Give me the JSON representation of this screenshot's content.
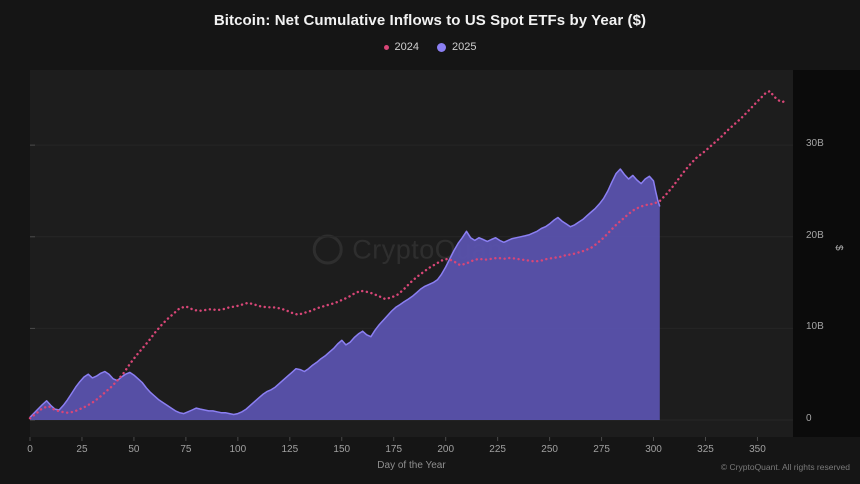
{
  "watermark": {
    "text": "CryptoQuant"
  },
  "footer": {
    "copyright": "© CryptoQuant. All rights reserved"
  },
  "colors": {
    "background": "#151515",
    "plot_background": "#1d1d1d",
    "axis_strip": "#0b0b0b",
    "grid": "#262626",
    "tick": "#4a4a4a",
    "series_2024": "#d84677",
    "series_2025_line": "#8b7ff2",
    "series_2025_fill": "#5a52ad"
  },
  "chart_data": {
    "type": "line",
    "title": "Bitcoin: Net Cumulative Inflows to US Spot ETFs by Year ($)",
    "xlabel": "Day of the Year",
    "ylabel": "$",
    "y_unit": "billions USD",
    "xlim": [
      0,
      367.1
    ],
    "ylim": [
      -1.85,
      38.2
    ],
    "grid": "horizontal-faint",
    "legend_position": "top-center",
    "y_axis_side": "right",
    "xticks": [
      0,
      25,
      50,
      75,
      100,
      125,
      150,
      175,
      200,
      225,
      250,
      275,
      300,
      325,
      350
    ],
    "yticks": [
      {
        "v": 0,
        "label": "0"
      },
      {
        "v": 10,
        "label": "10B"
      },
      {
        "v": 20,
        "label": "20B"
      },
      {
        "v": 30,
        "label": "30B"
      }
    ],
    "series": [
      {
        "name": "2024",
        "style": "dotted-line",
        "color": "#d84677",
        "points": [
          [
            0,
            0.2
          ],
          [
            3,
            0.7
          ],
          [
            6,
            1.3
          ],
          [
            9,
            1.5
          ],
          [
            12,
            1.1
          ],
          [
            15,
            0.9
          ],
          [
            18,
            0.8
          ],
          [
            21,
            0.9
          ],
          [
            24,
            1.2
          ],
          [
            27,
            1.5
          ],
          [
            30,
            1.9
          ],
          [
            33,
            2.4
          ],
          [
            36,
            3.0
          ],
          [
            39,
            3.6
          ],
          [
            42,
            4.3
          ],
          [
            45,
            5.1
          ],
          [
            48,
            6.1
          ],
          [
            51,
            7.0
          ],
          [
            54,
            7.8
          ],
          [
            57,
            8.6
          ],
          [
            60,
            9.5
          ],
          [
            63,
            10.3
          ],
          [
            66,
            11.0
          ],
          [
            69,
            11.6
          ],
          [
            72,
            12.2
          ],
          [
            75,
            12.4
          ],
          [
            78,
            12.1
          ],
          [
            81,
            11.9
          ],
          [
            84,
            12.0
          ],
          [
            87,
            12.1
          ],
          [
            90,
            12.0
          ],
          [
            93,
            12.1
          ],
          [
            96,
            12.3
          ],
          [
            99,
            12.4
          ],
          [
            102,
            12.6
          ],
          [
            105,
            12.8
          ],
          [
            108,
            12.6
          ],
          [
            111,
            12.4
          ],
          [
            114,
            12.3
          ],
          [
            117,
            12.3
          ],
          [
            120,
            12.2
          ],
          [
            123,
            12.0
          ],
          [
            126,
            11.7
          ],
          [
            129,
            11.5
          ],
          [
            132,
            11.7
          ],
          [
            135,
            11.9
          ],
          [
            138,
            12.2
          ],
          [
            141,
            12.4
          ],
          [
            144,
            12.6
          ],
          [
            147,
            12.8
          ],
          [
            150,
            13.1
          ],
          [
            153,
            13.4
          ],
          [
            156,
            13.8
          ],
          [
            159,
            14.1
          ],
          [
            162,
            14.0
          ],
          [
            165,
            13.8
          ],
          [
            168,
            13.5
          ],
          [
            171,
            13.2
          ],
          [
            174,
            13.4
          ],
          [
            177,
            13.7
          ],
          [
            180,
            14.3
          ],
          [
            183,
            15.0
          ],
          [
            186,
            15.6
          ],
          [
            189,
            16.1
          ],
          [
            192,
            16.6
          ],
          [
            195,
            17.0
          ],
          [
            198,
            17.4
          ],
          [
            201,
            17.6
          ],
          [
            204,
            17.3
          ],
          [
            207,
            16.9
          ],
          [
            210,
            17.1
          ],
          [
            213,
            17.4
          ],
          [
            216,
            17.6
          ],
          [
            219,
            17.5
          ],
          [
            222,
            17.6
          ],
          [
            225,
            17.7
          ],
          [
            228,
            17.6
          ],
          [
            231,
            17.7
          ],
          [
            234,
            17.6
          ],
          [
            237,
            17.5
          ],
          [
            240,
            17.4
          ],
          [
            243,
            17.3
          ],
          [
            246,
            17.4
          ],
          [
            249,
            17.6
          ],
          [
            252,
            17.7
          ],
          [
            255,
            17.8
          ],
          [
            258,
            18.0
          ],
          [
            261,
            18.1
          ],
          [
            264,
            18.3
          ],
          [
            267,
            18.5
          ],
          [
            270,
            18.8
          ],
          [
            273,
            19.3
          ],
          [
            276,
            19.9
          ],
          [
            279,
            20.6
          ],
          [
            282,
            21.3
          ],
          [
            285,
            21.9
          ],
          [
            288,
            22.5
          ],
          [
            291,
            23.0
          ],
          [
            294,
            23.3
          ],
          [
            297,
            23.5
          ],
          [
            300,
            23.6
          ],
          [
            303,
            23.9
          ],
          [
            306,
            24.6
          ],
          [
            309,
            25.4
          ],
          [
            312,
            26.3
          ],
          [
            315,
            27.2
          ],
          [
            318,
            28.0
          ],
          [
            321,
            28.7
          ],
          [
            324,
            29.2
          ],
          [
            327,
            29.8
          ],
          [
            330,
            30.4
          ],
          [
            333,
            31.0
          ],
          [
            336,
            31.7
          ],
          [
            339,
            32.3
          ],
          [
            342,
            32.9
          ],
          [
            345,
            33.6
          ],
          [
            348,
            34.3
          ],
          [
            351,
            35.0
          ],
          [
            354,
            35.7
          ],
          [
            356,
            35.9
          ],
          [
            358,
            35.3
          ],
          [
            360,
            34.9
          ],
          [
            362,
            34.7
          ],
          [
            364,
            34.9
          ]
        ]
      },
      {
        "name": "2025",
        "style": "filled-area",
        "color": "#8b7ff2",
        "fill": "#5a52ad",
        "points": [
          [
            0,
            0.3
          ],
          [
            3,
            1.0
          ],
          [
            6,
            1.7
          ],
          [
            8,
            2.1
          ],
          [
            10,
            1.6
          ],
          [
            12,
            1.2
          ],
          [
            14,
            1.1
          ],
          [
            16,
            1.6
          ],
          [
            18,
            2.2
          ],
          [
            20,
            2.9
          ],
          [
            22,
            3.6
          ],
          [
            24,
            4.2
          ],
          [
            26,
            4.7
          ],
          [
            28,
            5.0
          ],
          [
            30,
            4.6
          ],
          [
            32,
            4.8
          ],
          [
            34,
            5.1
          ],
          [
            36,
            5.3
          ],
          [
            38,
            5.0
          ],
          [
            40,
            4.5
          ],
          [
            42,
            4.3
          ],
          [
            44,
            4.7
          ],
          [
            46,
            5.0
          ],
          [
            48,
            5.2
          ],
          [
            50,
            4.9
          ],
          [
            52,
            4.5
          ],
          [
            54,
            4.1
          ],
          [
            56,
            3.5
          ],
          [
            58,
            3.0
          ],
          [
            60,
            2.6
          ],
          [
            62,
            2.2
          ],
          [
            64,
            1.9
          ],
          [
            66,
            1.6
          ],
          [
            68,
            1.3
          ],
          [
            70,
            1.0
          ],
          [
            72,
            0.8
          ],
          [
            74,
            0.7
          ],
          [
            76,
            0.9
          ],
          [
            78,
            1.1
          ],
          [
            80,
            1.3
          ],
          [
            82,
            1.2
          ],
          [
            84,
            1.1
          ],
          [
            86,
            1.0
          ],
          [
            88,
            1.0
          ],
          [
            90,
            0.9
          ],
          [
            92,
            0.8
          ],
          [
            94,
            0.8
          ],
          [
            96,
            0.7
          ],
          [
            98,
            0.6
          ],
          [
            100,
            0.7
          ],
          [
            102,
            0.9
          ],
          [
            104,
            1.2
          ],
          [
            106,
            1.6
          ],
          [
            108,
            2.0
          ],
          [
            110,
            2.4
          ],
          [
            112,
            2.8
          ],
          [
            114,
            3.1
          ],
          [
            116,
            3.3
          ],
          [
            118,
            3.6
          ],
          [
            120,
            4.0
          ],
          [
            122,
            4.4
          ],
          [
            124,
            4.8
          ],
          [
            126,
            5.2
          ],
          [
            128,
            5.6
          ],
          [
            130,
            5.5
          ],
          [
            132,
            5.3
          ],
          [
            134,
            5.6
          ],
          [
            136,
            6.0
          ],
          [
            138,
            6.3
          ],
          [
            140,
            6.7
          ],
          [
            142,
            7.0
          ],
          [
            144,
            7.4
          ],
          [
            146,
            7.8
          ],
          [
            148,
            8.3
          ],
          [
            150,
            8.7
          ],
          [
            152,
            8.2
          ],
          [
            154,
            8.5
          ],
          [
            156,
            9.0
          ],
          [
            158,
            9.4
          ],
          [
            160,
            9.7
          ],
          [
            162,
            9.3
          ],
          [
            164,
            9.1
          ],
          [
            166,
            9.8
          ],
          [
            168,
            10.4
          ],
          [
            170,
            10.9
          ],
          [
            172,
            11.4
          ],
          [
            174,
            11.9
          ],
          [
            176,
            12.3
          ],
          [
            178,
            12.6
          ],
          [
            180,
            12.9
          ],
          [
            182,
            13.2
          ],
          [
            184,
            13.5
          ],
          [
            186,
            13.9
          ],
          [
            188,
            14.3
          ],
          [
            190,
            14.6
          ],
          [
            192,
            14.8
          ],
          [
            194,
            15.0
          ],
          [
            196,
            15.3
          ],
          [
            198,
            15.9
          ],
          [
            200,
            16.7
          ],
          [
            202,
            17.6
          ],
          [
            204,
            18.5
          ],
          [
            206,
            19.3
          ],
          [
            208,
            19.9
          ],
          [
            210,
            20.6
          ],
          [
            212,
            19.9
          ],
          [
            214,
            19.6
          ],
          [
            216,
            19.9
          ],
          [
            218,
            19.7
          ],
          [
            220,
            19.5
          ],
          [
            222,
            19.7
          ],
          [
            224,
            19.9
          ],
          [
            226,
            19.6
          ],
          [
            228,
            19.4
          ],
          [
            230,
            19.6
          ],
          [
            232,
            19.8
          ],
          [
            234,
            19.9
          ],
          [
            236,
            20.0
          ],
          [
            238,
            20.1
          ],
          [
            240,
            20.2
          ],
          [
            242,
            20.4
          ],
          [
            244,
            20.6
          ],
          [
            246,
            20.9
          ],
          [
            248,
            21.1
          ],
          [
            250,
            21.4
          ],
          [
            252,
            21.8
          ],
          [
            254,
            22.1
          ],
          [
            256,
            21.7
          ],
          [
            258,
            21.4
          ],
          [
            260,
            21.1
          ],
          [
            262,
            21.3
          ],
          [
            264,
            21.6
          ],
          [
            266,
            21.9
          ],
          [
            268,
            22.3
          ],
          [
            270,
            22.7
          ],
          [
            272,
            23.1
          ],
          [
            274,
            23.6
          ],
          [
            276,
            24.2
          ],
          [
            278,
            25.0
          ],
          [
            280,
            26.0
          ],
          [
            282,
            26.9
          ],
          [
            284,
            27.4
          ],
          [
            286,
            26.8
          ],
          [
            288,
            26.3
          ],
          [
            290,
            26.7
          ],
          [
            292,
            26.2
          ],
          [
            294,
            25.8
          ],
          [
            296,
            26.3
          ],
          [
            298,
            26.6
          ],
          [
            300,
            26.1
          ],
          [
            301,
            25.0
          ],
          [
            302,
            24.0
          ],
          [
            303,
            23.3
          ]
        ]
      }
    ]
  }
}
